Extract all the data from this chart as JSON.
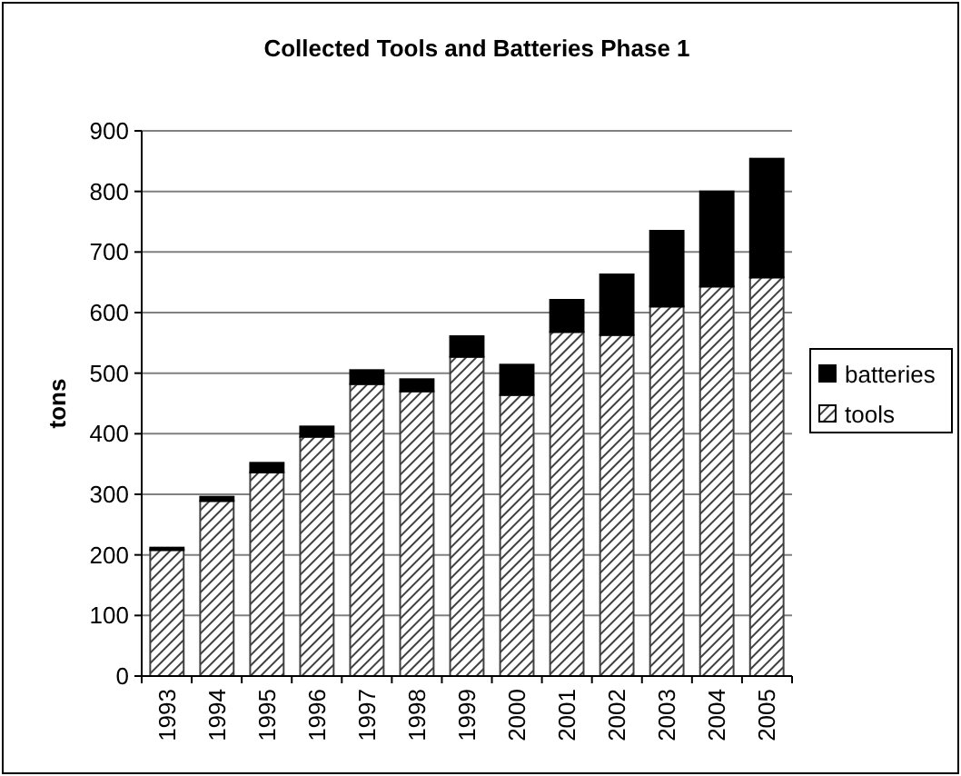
{
  "chart_data": {
    "type": "bar",
    "title": "Collected Tools and Batteries Phase 1",
    "ylabel": "tons",
    "categories": [
      "1993",
      "1994",
      "1995",
      "1996",
      "1997",
      "1998",
      "1999",
      "2000",
      "2001",
      "2002",
      "2003",
      "2004",
      "2005"
    ],
    "stacked": true,
    "series": [
      {
        "name": "tools",
        "color": "#404040",
        "values": [
          208,
          289,
          336,
          395,
          482,
          470,
          527,
          464,
          568,
          563,
          610,
          643,
          658
        ]
      },
      {
        "name": "batteries",
        "color": "#000000",
        "values": [
          4,
          7,
          16,
          17,
          23,
          20,
          34,
          50,
          53,
          100,
          125,
          157,
          196
        ]
      }
    ],
    "ylim": [
      0,
      900
    ],
    "yticks": [
      0,
      100,
      200,
      300,
      400,
      500,
      600,
      700,
      800,
      900
    ],
    "grid": "y",
    "legend": "right"
  }
}
